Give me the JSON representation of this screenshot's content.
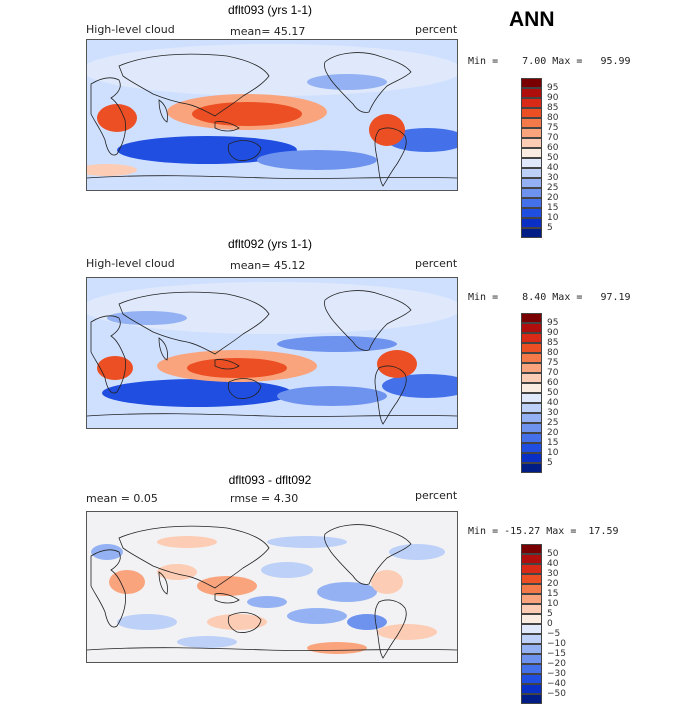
{
  "season": "ANN",
  "panels": [
    {
      "title": "dflt093 (yrs 1-1)",
      "left_label": "High-level cloud",
      "center_label": "mean=  45.17",
      "units": "percent",
      "minmax": "Min =    7.00 Max =   95.99"
    },
    {
      "title": "dflt092 (yrs 1-1)",
      "left_label": "High-level cloud",
      "center_label": "mean=  45.12",
      "units": "percent",
      "minmax": "Min =    8.40 Max =   97.19"
    },
    {
      "title": "dflt093 - dflt092",
      "left_label": "mean =    0.05",
      "center_label": "rmse =    4.30",
      "units": "percent",
      "minmax": "Min = -15.27 Max =  17.59"
    }
  ],
  "colorbars": {
    "abs": {
      "labels": [
        "95",
        "90",
        "85",
        "80",
        "75",
        "70",
        "60",
        "50",
        "40",
        "30",
        "25",
        "20",
        "15",
        "10",
        "5"
      ],
      "colors": [
        "#7a0000",
        "#b00d0d",
        "#d82a16",
        "#ec4f24",
        "#f57a4a",
        "#f9a47d",
        "#fcccb4",
        "#fbece2",
        "#dfe9fb",
        "#bcd0f8",
        "#94b2f3",
        "#6e93ee",
        "#4471ea",
        "#1f4ee0",
        "#0a2fc4",
        "#001d86"
      ]
    },
    "diff": {
      "labels": [
        "50",
        "40",
        "30",
        "20",
        "15",
        "10",
        "5",
        "0",
        "−5",
        "−10",
        "−15",
        "−20",
        "−30",
        "−40",
        "−50"
      ],
      "colors": [
        "#7a0000",
        "#b00d0d",
        "#d82a16",
        "#ec4f24",
        "#f57a4a",
        "#f9a47d",
        "#fcccb4",
        "#fbece2",
        "#dfe9fb",
        "#bcd0f8",
        "#94b2f3",
        "#6e93ee",
        "#4471ea",
        "#1f4ee0",
        "#0a2fc4",
        "#001d86"
      ]
    }
  },
  "chart_data": [
    {
      "type": "heatmap",
      "title": "dflt093 (yrs 1-1)",
      "variable": "High-level cloud",
      "units": "percent",
      "mean": 45.17,
      "min": 7.0,
      "max": 95.99,
      "levels": [
        5,
        10,
        15,
        20,
        25,
        30,
        40,
        50,
        60,
        70,
        75,
        80,
        85,
        90,
        95
      ]
    },
    {
      "type": "heatmap",
      "title": "dflt092 (yrs 1-1)",
      "variable": "High-level cloud",
      "units": "percent",
      "mean": 45.12,
      "min": 8.4,
      "max": 97.19,
      "levels": [
        5,
        10,
        15,
        20,
        25,
        30,
        40,
        50,
        60,
        70,
        75,
        80,
        85,
        90,
        95
      ]
    },
    {
      "type": "heatmap",
      "title": "dflt093 - dflt092",
      "units": "percent",
      "mean": 0.05,
      "rmse": 4.3,
      "min": -15.27,
      "max": 17.59,
      "levels": [
        -50,
        -40,
        -30,
        -20,
        -15,
        -10,
        -5,
        0,
        5,
        10,
        15,
        20,
        30,
        40,
        50
      ]
    }
  ]
}
